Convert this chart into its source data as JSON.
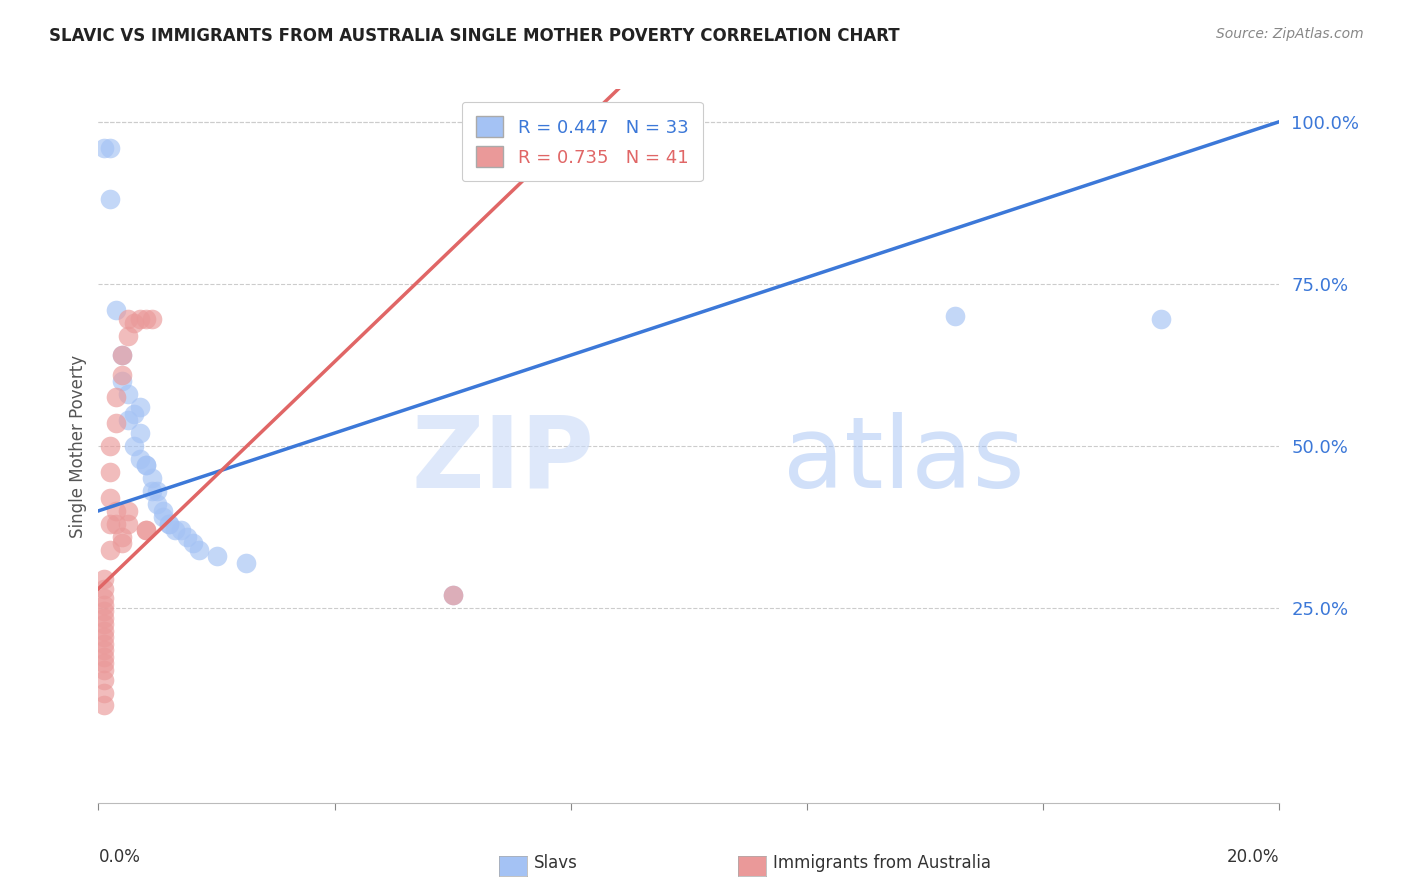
{
  "title": "SLAVIC VS IMMIGRANTS FROM AUSTRALIA SINGLE MOTHER POVERTY CORRELATION CHART",
  "source": "Source: ZipAtlas.com",
  "ylabel": "Single Mother Poverty",
  "ytick_labels": [
    "25.0%",
    "50.0%",
    "75.0%",
    "100.0%"
  ],
  "ytick_values": [
    0.25,
    0.5,
    0.75,
    1.0
  ],
  "xmin": 0.0,
  "xmax": 0.2,
  "ymin": -0.05,
  "ymax": 1.05,
  "blue_R": 0.447,
  "blue_N": 33,
  "pink_R": 0.735,
  "pink_N": 41,
  "blue_color": "#a4c2f4",
  "pink_color": "#ea9999",
  "blue_line_color": "#3c78d8",
  "pink_line_color": "#e06666",
  "watermark_zip": "ZIP",
  "watermark_atlas": "atlas",
  "legend_label_blue": "Slavs",
  "legend_label_pink": "Immigrants from Australia",
  "blue_scatter": [
    [
      0.001,
      0.96
    ],
    [
      0.002,
      0.96
    ],
    [
      0.002,
      0.88
    ],
    [
      0.003,
      0.71
    ],
    [
      0.004,
      0.64
    ],
    [
      0.004,
      0.6
    ],
    [
      0.005,
      0.58
    ],
    [
      0.005,
      0.54
    ],
    [
      0.006,
      0.55
    ],
    [
      0.006,
      0.5
    ],
    [
      0.007,
      0.56
    ],
    [
      0.007,
      0.48
    ],
    [
      0.007,
      0.52
    ],
    [
      0.008,
      0.47
    ],
    [
      0.008,
      0.47
    ],
    [
      0.009,
      0.45
    ],
    [
      0.009,
      0.43
    ],
    [
      0.01,
      0.43
    ],
    [
      0.01,
      0.41
    ],
    [
      0.011,
      0.4
    ],
    [
      0.011,
      0.39
    ],
    [
      0.012,
      0.38
    ],
    [
      0.012,
      0.38
    ],
    [
      0.013,
      0.37
    ],
    [
      0.014,
      0.37
    ],
    [
      0.015,
      0.36
    ],
    [
      0.016,
      0.35
    ],
    [
      0.017,
      0.34
    ],
    [
      0.02,
      0.33
    ],
    [
      0.025,
      0.32
    ],
    [
      0.06,
      0.27
    ],
    [
      0.145,
      0.7
    ],
    [
      0.18,
      0.695
    ]
  ],
  "pink_scatter": [
    [
      0.001,
      0.295
    ],
    [
      0.001,
      0.28
    ],
    [
      0.001,
      0.265
    ],
    [
      0.001,
      0.255
    ],
    [
      0.001,
      0.245
    ],
    [
      0.001,
      0.235
    ],
    [
      0.001,
      0.225
    ],
    [
      0.001,
      0.215
    ],
    [
      0.001,
      0.205
    ],
    [
      0.001,
      0.195
    ],
    [
      0.001,
      0.185
    ],
    [
      0.001,
      0.175
    ],
    [
      0.001,
      0.165
    ],
    [
      0.001,
      0.155
    ],
    [
      0.001,
      0.14
    ],
    [
      0.001,
      0.12
    ],
    [
      0.001,
      0.1
    ],
    [
      0.002,
      0.34
    ],
    [
      0.002,
      0.38
    ],
    [
      0.002,
      0.42
    ],
    [
      0.002,
      0.46
    ],
    [
      0.002,
      0.5
    ],
    [
      0.003,
      0.535
    ],
    [
      0.003,
      0.575
    ],
    [
      0.004,
      0.61
    ],
    [
      0.004,
      0.64
    ],
    [
      0.005,
      0.67
    ],
    [
      0.005,
      0.695
    ],
    [
      0.006,
      0.69
    ],
    [
      0.007,
      0.695
    ],
    [
      0.008,
      0.695
    ],
    [
      0.009,
      0.695
    ],
    [
      0.003,
      0.38
    ],
    [
      0.003,
      0.4
    ],
    [
      0.004,
      0.35
    ],
    [
      0.004,
      0.36
    ],
    [
      0.005,
      0.38
    ],
    [
      0.005,
      0.4
    ],
    [
      0.008,
      0.37
    ],
    [
      0.008,
      0.37
    ],
    [
      0.06,
      0.27
    ]
  ]
}
